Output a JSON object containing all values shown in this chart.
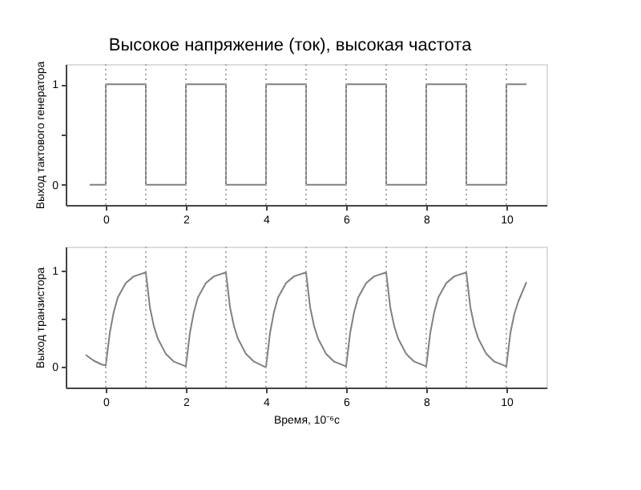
{
  "chart_data": [
    {
      "type": "line",
      "title": "Высокое напряжение (ток), высокая частота",
      "ylabel": "Выход тактового генератора",
      "x": [
        -0.4,
        0,
        0,
        1,
        1,
        2,
        2,
        3,
        3,
        4,
        4,
        5,
        5,
        6,
        6,
        7,
        7,
        8,
        8,
        9,
        9,
        10,
        10,
        10.5
      ],
      "series": [
        {
          "color": "#808080",
          "values": [
            0,
            0,
            1,
            1,
            0,
            0,
            1,
            1,
            0,
            0,
            1,
            1,
            0,
            0,
            1,
            1,
            0,
            0,
            1,
            1,
            0,
            0,
            1,
            1
          ]
        }
      ],
      "xlim": [
        -1,
        11
      ],
      "xticks": [
        0,
        {
          "value": 1,
          "label": null
        },
        2,
        {
          "value": 3,
          "label": null
        },
        4,
        {
          "value": 5,
          "label": null
        },
        6,
        {
          "value": 7,
          "label": null
        },
        8,
        {
          "value": 9,
          "label": null
        },
        10
      ],
      "ylim": [
        -0.2,
        1.2
      ],
      "yticks": [
        0,
        {
          "value": 0.5,
          "label": null
        },
        1
      ],
      "ref_lines": [
        {
          "axis": "x",
          "value": 0,
          "label": null
        },
        {
          "axis": "x",
          "value": 1,
          "label": null
        },
        {
          "axis": "x",
          "value": 2,
          "label": null
        },
        {
          "axis": "x",
          "value": 3,
          "label": null
        },
        {
          "axis": "x",
          "value": 4,
          "label": null
        },
        {
          "axis": "x",
          "value": 5,
          "label": null
        },
        {
          "axis": "x",
          "value": 6,
          "label": null
        },
        {
          "axis": "x",
          "value": 7,
          "label": null
        },
        {
          "axis": "x",
          "value": 8,
          "label": null
        },
        {
          "axis": "x",
          "value": 9,
          "label": null
        },
        {
          "axis": "x",
          "value": 10,
          "label": null
        }
      ],
      "line_style": "solid",
      "grid": false
    },
    {
      "type": "line",
      "xlabel": "Время, 10⁻⁶с",
      "ylabel": "Выход транзистора",
      "x": [
        -0.5,
        -0.3,
        -0.1,
        0,
        0.1,
        0.2,
        0.3,
        0.5,
        0.7,
        1,
        1.1,
        1.2,
        1.3,
        1.5,
        1.7,
        2,
        2.1,
        2.2,
        2.3,
        2.5,
        2.7,
        3,
        3.1,
        3.2,
        3.3,
        3.5,
        3.7,
        4,
        4.1,
        4.2,
        4.3,
        4.5,
        4.7,
        5,
        5.1,
        5.2,
        5.3,
        5.5,
        5.7,
        6,
        6.1,
        6.2,
        6.3,
        6.5,
        6.7,
        7,
        7.1,
        7.2,
        7.3,
        7.5,
        7.7,
        8,
        8.1,
        8.2,
        8.3,
        8.5,
        8.7,
        9,
        9.1,
        9.2,
        9.3,
        9.5,
        9.7,
        10,
        10.1,
        10.2,
        10.3,
        10.5
      ],
      "series": [
        {
          "color": "#808080",
          "values": [
            0.12,
            0.06,
            0.02,
            0.01,
            0.35,
            0.57,
            0.72,
            0.87,
            0.94,
            0.98,
            0.62,
            0.42,
            0.29,
            0.13,
            0.05,
            0,
            0.35,
            0.57,
            0.72,
            0.87,
            0.94,
            0.98,
            0.62,
            0.42,
            0.29,
            0.13,
            0.05,
            -0.01,
            0.35,
            0.57,
            0.72,
            0.87,
            0.94,
            0.98,
            0.62,
            0.42,
            0.29,
            0.13,
            0.05,
            0,
            0.35,
            0.57,
            0.72,
            0.87,
            0.94,
            0.98,
            0.62,
            0.42,
            0.29,
            0.13,
            0.05,
            0,
            0.35,
            0.57,
            0.72,
            0.87,
            0.94,
            0.98,
            0.62,
            0.42,
            0.29,
            0.13,
            0.05,
            0,
            0.35,
            0.55,
            0.68,
            0.88
          ]
        }
      ],
      "xlim": [
        -1,
        11
      ],
      "xticks": [
        0,
        {
          "value": 1,
          "label": null
        },
        2,
        {
          "value": 3,
          "label": null
        },
        4,
        {
          "value": 5,
          "label": null
        },
        6,
        {
          "value": 7,
          "label": null
        },
        8,
        {
          "value": 9,
          "label": null
        },
        10
      ],
      "ylim": [
        -0.22,
        1.25
      ],
      "yticks": [
        0,
        {
          "value": 0.5,
          "label": null
        },
        1
      ],
      "ref_lines": [
        {
          "axis": "x",
          "value": 0,
          "label": null
        },
        {
          "axis": "x",
          "value": 1,
          "label": null
        },
        {
          "axis": "x",
          "value": 2,
          "label": null
        },
        {
          "axis": "x",
          "value": 3,
          "label": null
        },
        {
          "axis": "x",
          "value": 4,
          "label": null
        },
        {
          "axis": "x",
          "value": 5,
          "label": null
        },
        {
          "axis": "x",
          "value": 6,
          "label": null
        },
        {
          "axis": "x",
          "value": 7,
          "label": null
        },
        {
          "axis": "x",
          "value": 8,
          "label": null
        },
        {
          "axis": "x",
          "value": 9,
          "label": null
        },
        {
          "axis": "x",
          "value": 10,
          "label": null
        }
      ],
      "line_style": "solid",
      "grid": false
    }
  ]
}
